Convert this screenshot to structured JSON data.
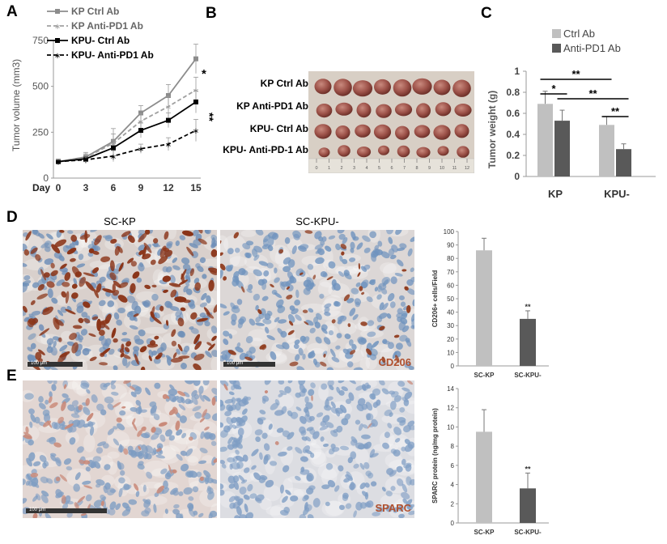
{
  "panels": {
    "A": "A",
    "B": "B",
    "C": "C",
    "D": "D",
    "E": "E"
  },
  "panelA": {
    "ylabel": "Tumor volume (mm3)",
    "xlabel": "Day",
    "legend": [
      "KP Ctrl Ab",
      "KP Anti-PD1 Ab",
      "KPU- Ctrl Ab",
      "KPU- Anti-PD1 Ab"
    ],
    "sig1": "*",
    "sig2": "**"
  },
  "panelB": {
    "rows": [
      "KP Ctrl Ab",
      "KP Anti-PD1 Ab",
      "KPU- Ctrl Ab",
      "KPU- Anti-PD-1 Ab"
    ],
    "ruler": [
      "0",
      "1",
      "2",
      "3",
      "4",
      "5",
      "6",
      "7",
      "8",
      "9",
      "10",
      "11",
      "12"
    ]
  },
  "panelC": {
    "ylabel": "Tumor weight (g)",
    "legend": [
      "Ctrl Ab",
      "Anti-PD1 Ab"
    ],
    "sig": [
      "*",
      "**",
      "**",
      "**"
    ]
  },
  "panelD": {
    "col1": "SC-KP",
    "col2": "SC-KPU-",
    "stain": "CD206",
    "scalebar": "100 μm"
  },
  "panelE": {
    "stain": "SPARC",
    "scalebar": "100 μm"
  },
  "chart_data": [
    {
      "type": "line",
      "x": [
        0,
        3,
        6,
        9,
        12,
        15
      ],
      "xlabel": "Day",
      "ylabel": "Tumor volume (mm3)",
      "ylim": [
        0,
        750
      ],
      "yticks": [
        0,
        250,
        500,
        750
      ],
      "series": [
        {
          "name": "KP Ctrl Ab",
          "values": [
            90,
            115,
            200,
            355,
            450,
            650
          ],
          "err": [
            12,
            25,
            70,
            40,
            60,
            80
          ],
          "color": "#8c8c8c",
          "dash": "",
          "marker": "square"
        },
        {
          "name": "KP Anti-PD1 Ab",
          "values": [
            90,
            112,
            190,
            310,
            390,
            480
          ],
          "err": [
            12,
            20,
            50,
            40,
            55,
            70
          ],
          "color": "#a0a0a0",
          "dash": "5,3",
          "marker": "x"
        },
        {
          "name": "KPU- Ctrl Ab",
          "values": [
            90,
            105,
            165,
            260,
            315,
            415
          ],
          "err": [
            10,
            18,
            40,
            40,
            40,
            60
          ],
          "color": "#000000",
          "dash": "",
          "marker": "square"
        },
        {
          "name": "KPU- Anti-PD1 Ab",
          "values": [
            90,
            100,
            120,
            160,
            185,
            260
          ],
          "err": [
            10,
            15,
            30,
            25,
            35,
            60
          ],
          "color": "#000000",
          "dash": "5,3",
          "marker": "x"
        }
      ]
    },
    {
      "type": "bar",
      "categories": [
        "KP",
        "KPU-"
      ],
      "series": [
        {
          "name": "Ctrl Ab",
          "values": [
            0.69,
            0.49
          ],
          "err": [
            0.12,
            0.08
          ],
          "color": "#c0c0c0"
        },
        {
          "name": "Anti-PD1 Ab",
          "values": [
            0.53,
            0.26
          ],
          "err": [
            0.1,
            0.05
          ],
          "color": "#595959"
        }
      ],
      "ylabel": "Tumor weight (g)",
      "ylim": [
        0,
        1
      ],
      "yticks": [
        "0",
        "0.2",
        "0.4",
        "0.6",
        "0.8",
        "1"
      ]
    },
    {
      "type": "bar",
      "categories": [
        "SC-KP",
        "SC-KPU-"
      ],
      "values": [
        86,
        35
      ],
      "err": [
        9,
        6
      ],
      "colors": [
        "#c0c0c0",
        "#595959"
      ],
      "ylabel": "CD206+ cells/Field",
      "ylim": [
        0,
        100
      ],
      "yticks": [
        "0",
        "10",
        "20",
        "30",
        "40",
        "50",
        "60",
        "70",
        "80",
        "90",
        "100"
      ],
      "sig": "**"
    },
    {
      "type": "bar",
      "categories": [
        "SC-KP",
        "SC-KPU-"
      ],
      "values": [
        9.5,
        3.6
      ],
      "err": [
        2.3,
        1.6
      ],
      "colors": [
        "#c0c0c0",
        "#595959"
      ],
      "ylabel": "SPARC protein (ng/mg protein)",
      "ylim": [
        0,
        14
      ],
      "yticks": [
        "0",
        "2",
        "4",
        "6",
        "8",
        "10",
        "12",
        "14"
      ],
      "sig": "**"
    }
  ]
}
